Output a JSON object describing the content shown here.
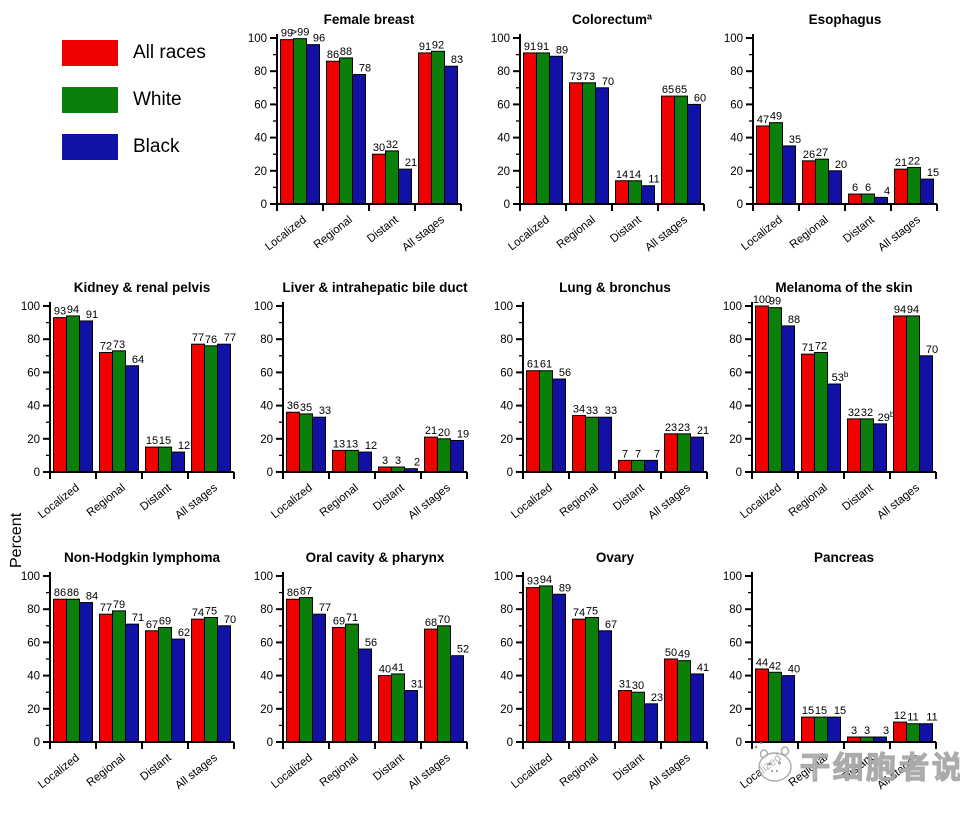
{
  "ylabel": "Percent",
  "legend": {
    "items": [
      {
        "label": "All races",
        "color": "#f10000"
      },
      {
        "label": "White",
        "color": "#0a7f0a"
      },
      {
        "label": "Black",
        "color": "#1111a5"
      }
    ]
  },
  "watermark": {
    "text": "干细胞者说"
  },
  "chart_data": {
    "type": "bar",
    "categories": [
      "Localized",
      "Regional",
      "Distant",
      "All stages"
    ],
    "ylabel": "Percent",
    "ylim": [
      0,
      100
    ],
    "yticks_major": [
      0,
      20,
      40,
      60,
      80,
      100
    ],
    "yticks_minor": [
      10,
      30,
      50,
      70,
      90
    ],
    "legend_position": "top-left",
    "series_names": [
      "All races",
      "White",
      "Black"
    ],
    "series_colors": [
      "#f10000",
      "#0a7f0a",
      "#1111a5"
    ],
    "panels": [
      {
        "title": "Female breast",
        "title_sup": "",
        "series": [
          {
            "name": "All races",
            "values": [
              99,
              86,
              30,
              91
            ]
          },
          {
            "name": "White",
            "values": [
              99.6,
              88,
              32,
              92
            ],
            "labels": [
              ">99",
              "88",
              "32",
              "92"
            ]
          },
          {
            "name": "Black",
            "values": [
              96,
              78,
              21,
              83
            ]
          }
        ]
      },
      {
        "title": "Colorectum",
        "title_sup": "a",
        "series": [
          {
            "name": "All races",
            "values": [
              91,
              73,
              14,
              65
            ]
          },
          {
            "name": "White",
            "values": [
              91,
              73,
              14,
              65
            ]
          },
          {
            "name": "Black",
            "values": [
              89,
              70,
              11,
              60
            ]
          }
        ]
      },
      {
        "title": "Esophagus",
        "title_sup": "",
        "series": [
          {
            "name": "All races",
            "values": [
              47,
              26,
              6,
              21
            ]
          },
          {
            "name": "White",
            "values": [
              49,
              27,
              6,
              22
            ]
          },
          {
            "name": "Black",
            "values": [
              35,
              20,
              4,
              15
            ]
          }
        ]
      },
      {
        "title": "Kidney & renal pelvis",
        "title_sup": "",
        "series": [
          {
            "name": "All races",
            "values": [
              93,
              72,
              15,
              77
            ]
          },
          {
            "name": "White",
            "values": [
              94,
              73,
              15,
              76
            ]
          },
          {
            "name": "Black",
            "values": [
              91,
              64,
              12,
              77
            ]
          }
        ]
      },
      {
        "title": "Liver & intrahepatic bile duct",
        "title_sup": "",
        "series": [
          {
            "name": "All races",
            "values": [
              36,
              13,
              3,
              21
            ]
          },
          {
            "name": "White",
            "values": [
              35,
              13,
              3,
              20
            ]
          },
          {
            "name": "Black",
            "values": [
              33,
              12,
              2,
              19
            ]
          }
        ]
      },
      {
        "title": "Lung & bronchus",
        "title_sup": "",
        "series": [
          {
            "name": "All races",
            "values": [
              61,
              34,
              7,
              23
            ]
          },
          {
            "name": "White",
            "values": [
              61,
              33,
              7,
              23
            ]
          },
          {
            "name": "Black",
            "values": [
              56,
              33,
              7,
              21
            ]
          }
        ]
      },
      {
        "title": "Melanoma of the skin",
        "title_sup": "",
        "series": [
          {
            "name": "All races",
            "values": [
              100,
              71,
              32,
              94
            ]
          },
          {
            "name": "White",
            "values": [
              99,
              72,
              32,
              94
            ]
          },
          {
            "name": "Black",
            "values": [
              88,
              53,
              29,
              70
            ],
            "labels": [
              "88",
              "53^b",
              "29^b",
              "70"
            ]
          }
        ]
      },
      {
        "title": "Non-Hodgkin lymphoma",
        "title_sup": "",
        "series": [
          {
            "name": "All races",
            "values": [
              86,
              77,
              67,
              74
            ]
          },
          {
            "name": "White",
            "values": [
              86,
              79,
              69,
              75
            ]
          },
          {
            "name": "Black",
            "values": [
              84,
              71,
              62,
              70
            ]
          }
        ]
      },
      {
        "title": "Oral cavity & pharynx",
        "title_sup": "",
        "series": [
          {
            "name": "All races",
            "values": [
              86,
              69,
              40,
              68
            ]
          },
          {
            "name": "White",
            "values": [
              87,
              71,
              41,
              70
            ]
          },
          {
            "name": "Black",
            "values": [
              77,
              56,
              31,
              52
            ]
          }
        ]
      },
      {
        "title": "Ovary",
        "title_sup": "",
        "series": [
          {
            "name": "All races",
            "values": [
              93,
              74,
              31,
              50
            ]
          },
          {
            "name": "White",
            "values": [
              94,
              75,
              30,
              49
            ]
          },
          {
            "name": "Black",
            "values": [
              89,
              67,
              23,
              41
            ]
          }
        ]
      },
      {
        "title": "Pancreas",
        "title_sup": "",
        "series": [
          {
            "name": "All races",
            "values": [
              44,
              15,
              3,
              12
            ]
          },
          {
            "name": "White",
            "values": [
              42,
              15,
              3,
              11
            ]
          },
          {
            "name": "Black",
            "values": [
              40,
              15,
              3,
              11
            ]
          }
        ]
      }
    ]
  }
}
